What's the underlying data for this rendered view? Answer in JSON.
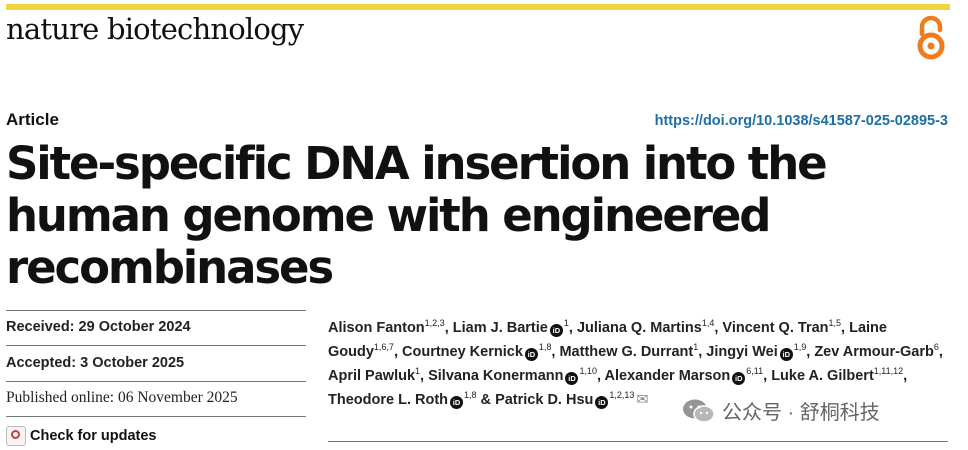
{
  "header": {
    "journal_name": "nature biotechnology",
    "open_access_icon": "open-access-icon"
  },
  "article": {
    "type": "Article",
    "doi": "https://doi.org/10.1038/s41587-025-02895-3",
    "title": "Site-specific DNA insertion into the human genome with engineered recombinases"
  },
  "dates": {
    "received": "Received: 29 October 2024",
    "accepted": "Accepted: 3 October 2025",
    "published": "Published online: 06 November 2025"
  },
  "check_for_updates": "Check for updates",
  "authors": [
    {
      "name": "Alison Fanton",
      "aff": "1,2,3",
      "orcid": false
    },
    {
      "name": "Liam J. Bartie",
      "aff": "1",
      "orcid": true
    },
    {
      "name": "Juliana Q. Martins",
      "aff": "1,4",
      "orcid": false
    },
    {
      "name": "Vincent Q. Tran",
      "aff": "1,5",
      "orcid": false
    },
    {
      "name": "Laine Goudy",
      "aff": "1,6,7",
      "orcid": false
    },
    {
      "name": "Courtney Kernick",
      "aff": "1,8",
      "orcid": true
    },
    {
      "name": "Matthew G. Durrant",
      "aff": "1",
      "orcid": false
    },
    {
      "name": "Jingyi Wei",
      "aff": "1,9",
      "orcid": true
    },
    {
      "name": "Zev Armour-Garb",
      "aff": "6",
      "orcid": false
    },
    {
      "name": "April Pawluk",
      "aff": "1",
      "orcid": false
    },
    {
      "name": "Silvana Konermann",
      "aff": "1,10",
      "orcid": true
    },
    {
      "name": "Alexander Marson",
      "aff": "6,11",
      "orcid": true
    },
    {
      "name": "Luke A. Gilbert",
      "aff": "1,11,12",
      "orcid": false
    },
    {
      "name": "Theodore L. Roth",
      "aff": "1,8",
      "orcid": true
    },
    {
      "name": "Patrick D. Hsu",
      "aff": "1,2,13",
      "orcid": true,
      "email": true
    }
  ],
  "watermark": "公众号 · 舒桐科技",
  "colors": {
    "accent_bar": "#f1d33f",
    "doi_link": "#1d6fa3",
    "open_access": "#f07c1e"
  }
}
